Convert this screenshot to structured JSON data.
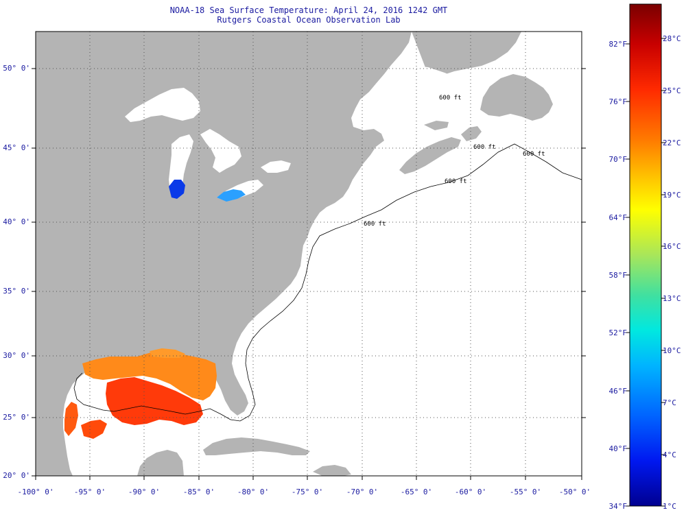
{
  "title": {
    "line1": "NOAA-18 Sea Surface Temperature:  April 24, 2016 1242 GMT",
    "line2": "Rutgers Coastal Ocean Observation Lab"
  },
  "map": {
    "lat_labels": [
      "50° 0'",
      "45° 0'",
      "40° 0'",
      "35° 0'",
      "30° 0'",
      "25° 0'",
      "20° 0'"
    ],
    "lon_labels": [
      "-100° 0'",
      "-95° 0'",
      "-90° 0'",
      "-85° 0'",
      "-80° 0'",
      "-75° 0'",
      "-70° 0'",
      "-65° 0'",
      "-60° 0'",
      "-55° 0'",
      "-50° 0'"
    ],
    "isobath_labels": [
      "600 ft",
      "600 ft",
      "600 ft",
      "600 ft",
      "600 ft"
    ],
    "colors": {
      "land": "#b4b4b4",
      "no_data_ocean": "#ffffff",
      "grid": "#505050"
    }
  },
  "colorbar": {
    "fahrenheit_labels": [
      "82°F",
      "76°F",
      "70°F",
      "64°F",
      "58°F",
      "52°F",
      "46°F",
      "40°F",
      "34°F"
    ],
    "celsius_labels": [
      "28°C",
      "25°C",
      "22°C",
      "19°C",
      "16°C",
      "13°C",
      "10°C",
      "7°C",
      "4°C",
      "1°C"
    ],
    "gradient_stops": [
      "#7a0000",
      "#c80000",
      "#ff2a00",
      "#ff7a00",
      "#ffc800",
      "#ffff00",
      "#a8e65a",
      "#40e0a0",
      "#00e8e0",
      "#00b4ff",
      "#0064ff",
      "#0018f0",
      "#000090"
    ]
  }
}
